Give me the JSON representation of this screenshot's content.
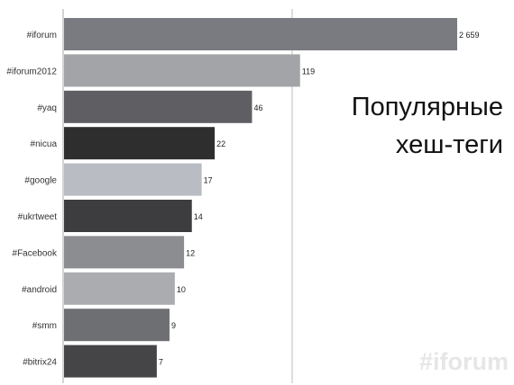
{
  "chart_data": {
    "type": "bar",
    "orientation": "horizontal",
    "title": "Популярные хеш-теги",
    "title_lines": [
      "Популярные",
      "хеш-теги"
    ],
    "categories": [
      "#iforum",
      "#iforum2012",
      "#yaq",
      "#nicua",
      "#google",
      "#ukrtweet",
      "#Facebook",
      "#android",
      "#smm",
      "#bitrix24"
    ],
    "values": [
      2659,
      119,
      46,
      22,
      17,
      14,
      12,
      10,
      9,
      7
    ],
    "value_labels": [
      "2 659",
      "119",
      "46",
      "22",
      "17",
      "14",
      "12",
      "10",
      "9",
      "7"
    ],
    "scale": "log",
    "bar_colors": [
      "#7a7b80",
      "#a3a4a7",
      "#5f5f63",
      "#2e2e2e",
      "#b9bcc2",
      "#3d3d3f",
      "#8c8d90",
      "#abacaf",
      "#6e6f73",
      "#454547"
    ],
    "grid": true,
    "legend": "none"
  },
  "watermark": "#iforum"
}
